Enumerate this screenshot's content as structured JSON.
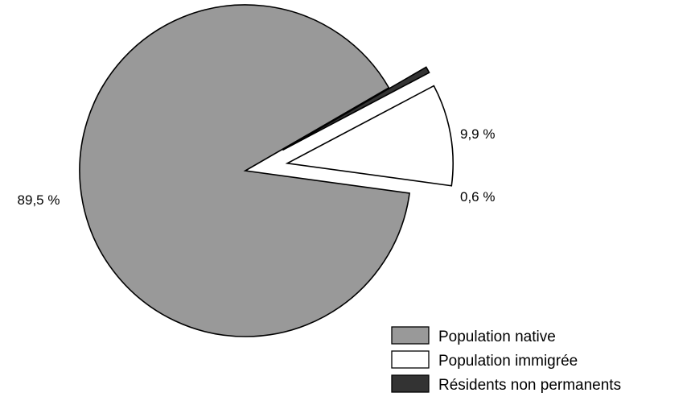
{
  "chart_data": {
    "type": "pie",
    "categories": [
      "Population native",
      "Population immigrée",
      "Résidents non permanents"
    ],
    "values": [
      89.5,
      9.9,
      0.6
    ],
    "value_labels": [
      "89,5  %",
      "9,9  %",
      "0,6  %"
    ],
    "colors": [
      "#999999",
      "#ffffff",
      "#333333"
    ],
    "exploded": [
      false,
      true,
      true
    ],
    "legend_position": "bottom-right",
    "title": ""
  }
}
